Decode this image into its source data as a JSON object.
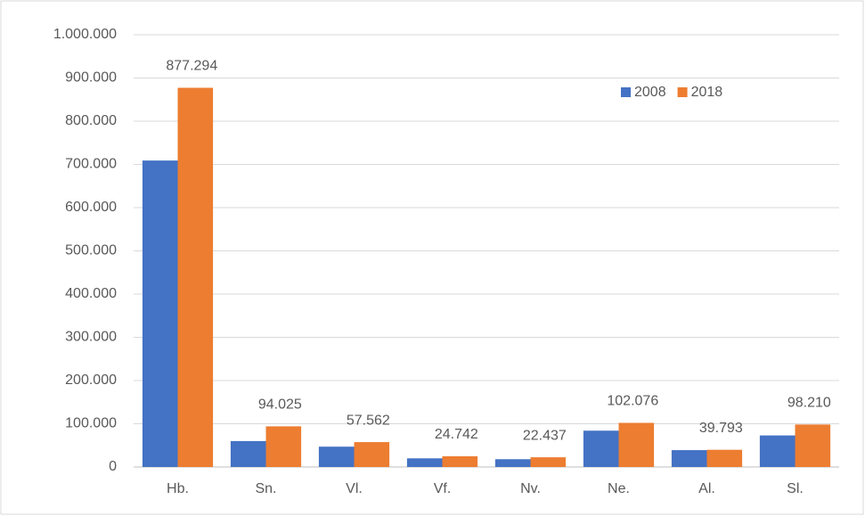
{
  "chart_data": {
    "type": "bar",
    "categories": [
      "Hb.",
      "Sn.",
      "Vl.",
      "Vf.",
      "Nv.",
      "Ne.",
      "Al.",
      "Sl."
    ],
    "series": [
      {
        "name": "2008",
        "color": "#4472c4",
        "values": [
          709000,
          60000,
          47000,
          20000,
          18000,
          84000,
          39000,
          73000
        ]
      },
      {
        "name": "2018",
        "color": "#ed7d31",
        "values": [
          877294,
          94025,
          57562,
          24742,
          22437,
          102076,
          39793,
          98210
        ],
        "value_labels": [
          "877.294",
          "94.025",
          "57.562",
          "24.742",
          "22.437",
          "102.076",
          "39.793",
          "98.210"
        ]
      }
    ],
    "ylim": [
      0,
      1000000
    ],
    "yticks": [
      0,
      {
        "value": 100000,
        "label": "100.000"
      },
      {
        "value": 200000,
        "label": "200.000"
      },
      {
        "value": 300000,
        "label": "300.000"
      },
      {
        "value": 400000,
        "label": "400.000"
      },
      {
        "value": 500000,
        "label": "500.000"
      },
      {
        "value": 600000,
        "label": "600.000"
      },
      {
        "value": 700000,
        "label": "700.000"
      },
      {
        "value": 800000,
        "label": "800.000"
      },
      {
        "value": 900000,
        "label": "900.000"
      },
      {
        "value": 1000000,
        "label": "1.000.000"
      }
    ],
    "grid": true,
    "legend": "top-right"
  }
}
